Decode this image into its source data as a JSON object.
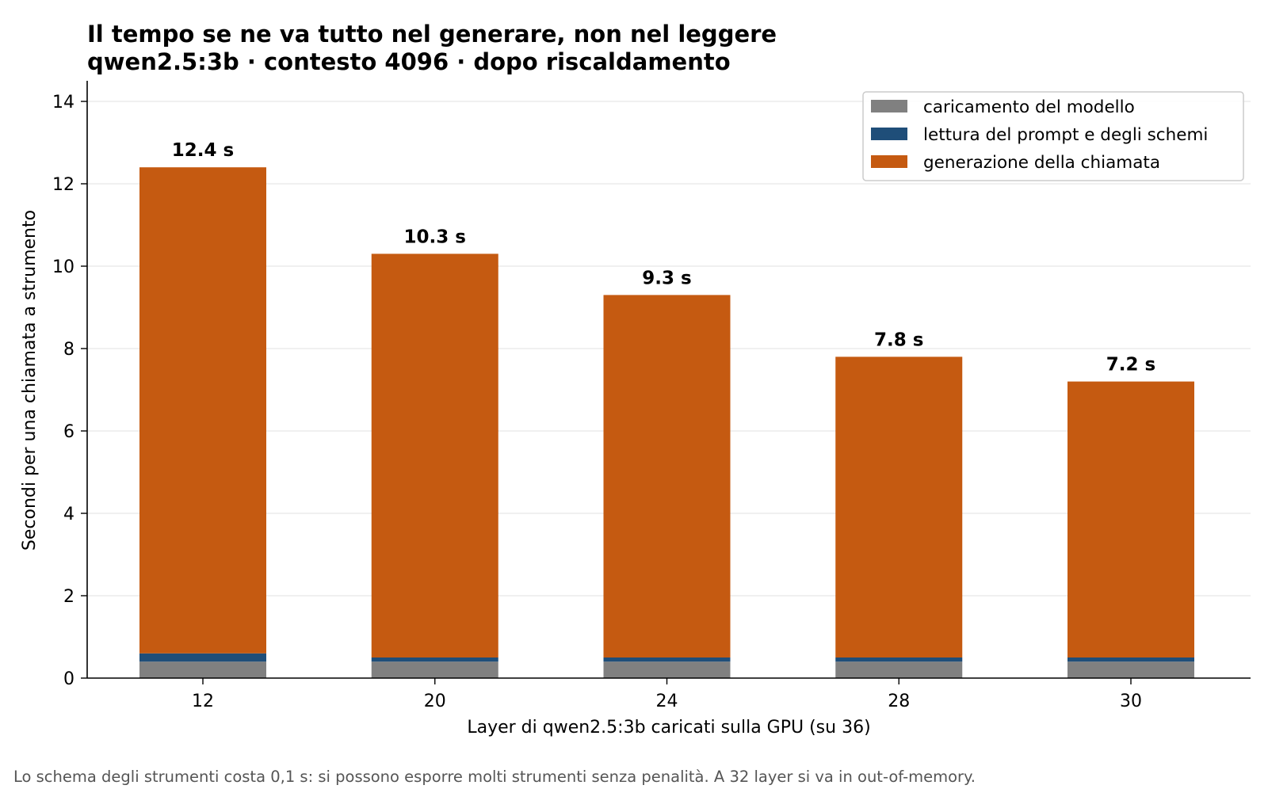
{
  "chart_data": {
    "type": "bar",
    "stacked": true,
    "title": "Il tempo se ne va tutto nel generare, non nel leggere",
    "subtitle": "qwen2.5:3b · contesto 4096 · dopo riscaldamento",
    "xlabel": "Layer di qwen2.5:3b caricati sulla GPU (su 36)",
    "ylabel": "Secondi per una chiamata a strumento",
    "categories": [
      "12",
      "20",
      "24",
      "28",
      "30"
    ],
    "ylim": [
      0,
      14.5
    ],
    "yticks": [
      0,
      2,
      4,
      6,
      8,
      10,
      12,
      14
    ],
    "grid": "horizontal",
    "legend_position": "top-right",
    "series": [
      {
        "name": "caricamento del modello",
        "color": "#808080",
        "values": [
          0.4,
          0.4,
          0.4,
          0.4,
          0.4
        ]
      },
      {
        "name": "lettura del prompt e degli schemi",
        "color": "#1f4e79",
        "values": [
          0.2,
          0.1,
          0.1,
          0.1,
          0.1
        ]
      },
      {
        "name": "generazione della chiamata",
        "color": "#c55a11",
        "values": [
          11.8,
          9.8,
          8.8,
          7.3,
          6.7
        ]
      }
    ],
    "totals": [
      12.4,
      10.3,
      9.3,
      7.8,
      7.2
    ],
    "total_labels": [
      "12.4 s",
      "10.3 s",
      "9.3 s",
      "7.8 s",
      "7.2 s"
    ]
  },
  "footnote": "Lo schema degli strumenti costa 0,1 s: si possono esporre molti strumenti senza penalità. A 32 layer si va in out-of-memory."
}
